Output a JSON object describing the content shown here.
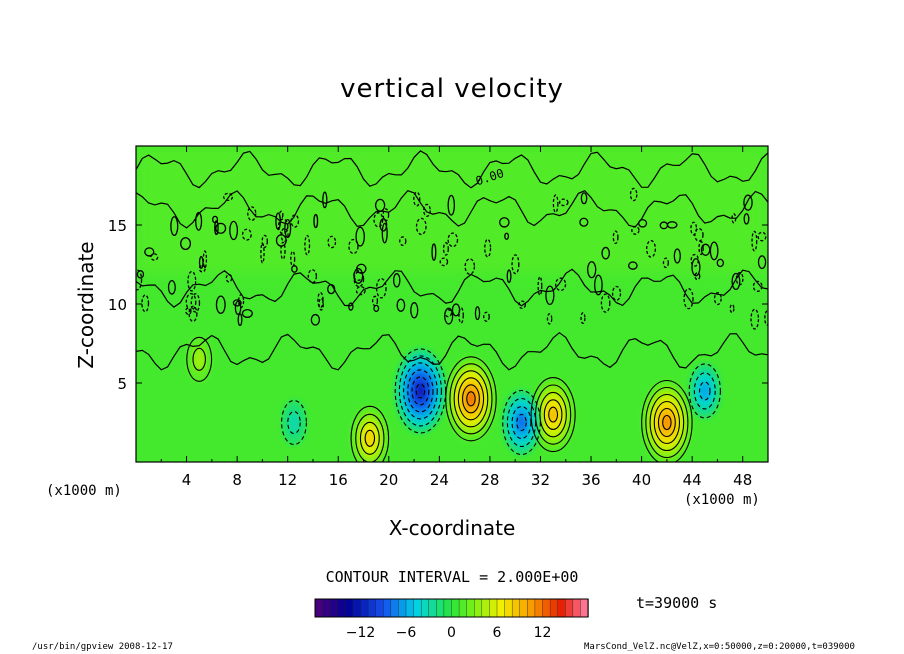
{
  "chart_data": {
    "type": "heatmap",
    "title": "vertical velocity",
    "xlabel": "X-coordinate",
    "ylabel": "Z-coordinate",
    "x_unit_left": "(x1000 m)",
    "x_unit_right": "(x1000 m)",
    "xlim": [
      0,
      50
    ],
    "ylim": [
      0,
      20
    ],
    "x_ticks": [
      4,
      8,
      12,
      16,
      20,
      24,
      28,
      32,
      36,
      40,
      44,
      48
    ],
    "y_ticks": [
      5,
      10,
      15
    ],
    "contour_interval": "CONTOUR INTERVAL = 2.000E+00",
    "time": "t=39000 s",
    "colorbar": {
      "range": [
        -18,
        18
      ],
      "ticks": [
        -12,
        -6,
        0,
        6,
        12
      ],
      "tick_labels": [
        "−12",
        "−6",
        "0",
        "6",
        "12"
      ]
    },
    "contour_label": "0.00",
    "features": [
      {
        "x": 26.5,
        "z": 4.0,
        "value": 12
      },
      {
        "x": 42.0,
        "z": 2.5,
        "value": 11
      },
      {
        "x": 18.5,
        "z": 1.5,
        "value": 8
      },
      {
        "x": 33.0,
        "z": 3.0,
        "value": 9
      },
      {
        "x": 22.5,
        "z": 4.5,
        "value": -12
      },
      {
        "x": 30.5,
        "z": 2.5,
        "value": -8
      },
      {
        "x": 45.0,
        "z": 4.5,
        "value": -6
      },
      {
        "x": 12.5,
        "z": 2.5,
        "value": -3
      },
      {
        "x": 5.0,
        "z": 6.5,
        "value": 4
      }
    ],
    "background_value": 1,
    "grid": false
  },
  "footer": {
    "left": "/usr/bin/gpview   2008-12-17",
    "right": "MarsCond_VelZ.nc@VelZ,x=0:50000,z=0:20000,t=039000"
  },
  "colors": {
    "background_field": "#40f020",
    "contour": "#000000"
  }
}
